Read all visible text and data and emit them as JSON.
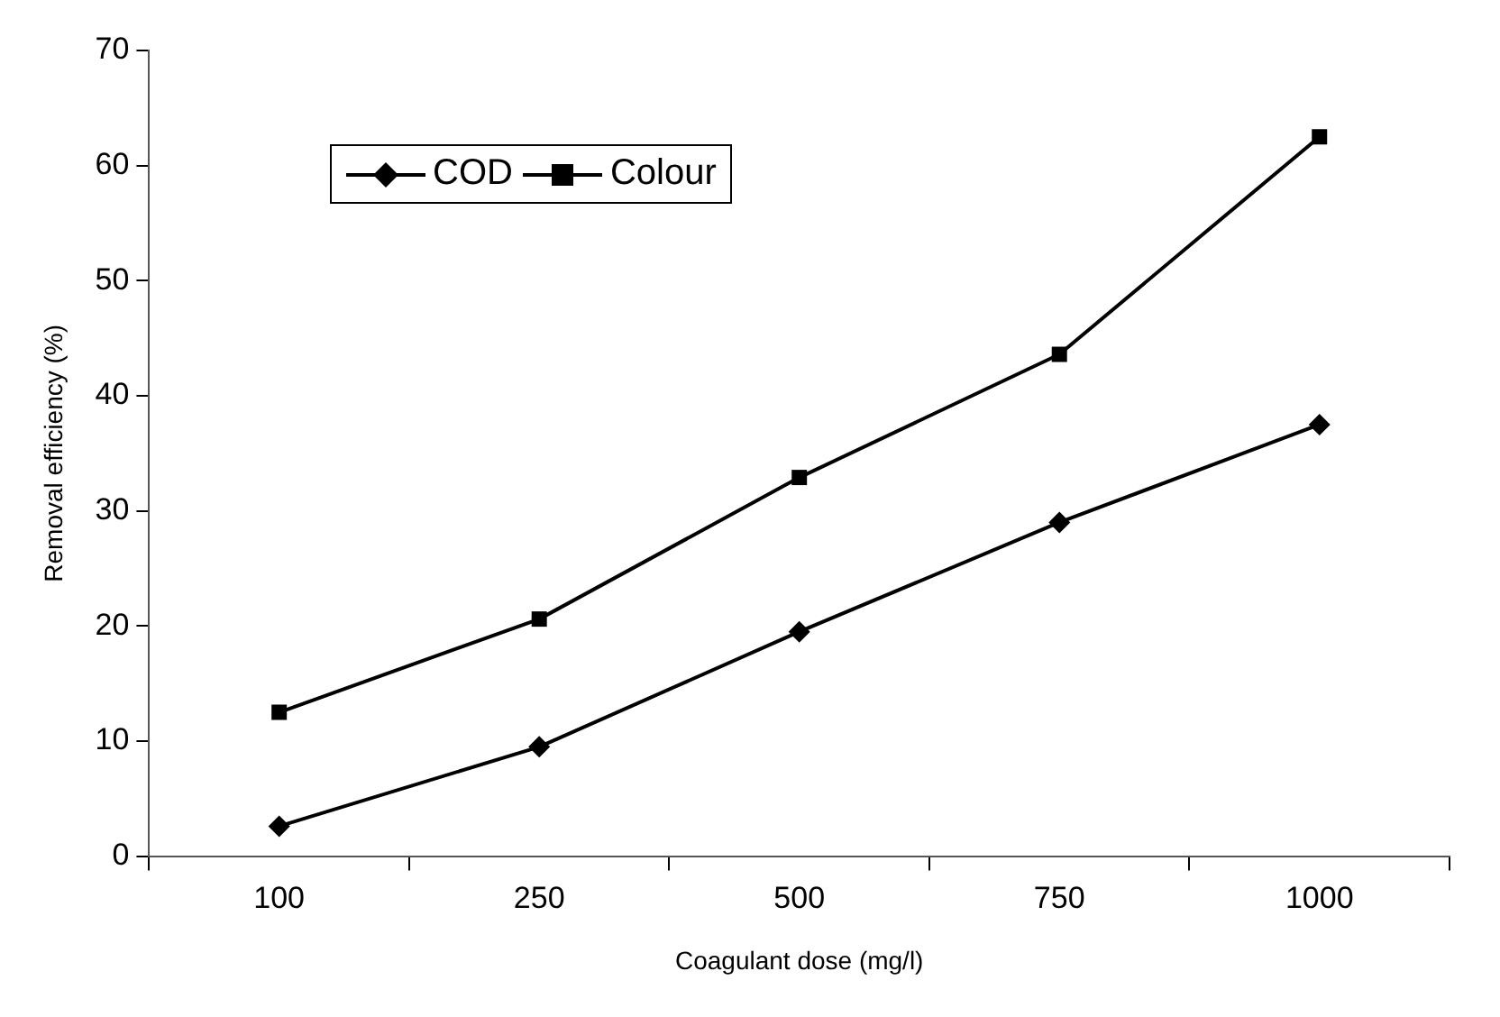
{
  "chart_data": {
    "type": "line",
    "xlabel": "Coagulant dose (mg/l)",
    "ylabel": "Removal efficiency (%)",
    "categories": [
      "100",
      "250",
      "500",
      "750",
      "1000"
    ],
    "series": [
      {
        "name": "COD",
        "color": "#000000",
        "marker": "diamond",
        "values": [
          2.6,
          9.5,
          19.5,
          29.0,
          37.5
        ]
      },
      {
        "name": "Colour",
        "color": "#000000",
        "marker": "square",
        "values": [
          12.5,
          20.6,
          32.9,
          43.6,
          62.5
        ]
      }
    ],
    "ylim": [
      0,
      70
    ],
    "yticks": [
      0,
      10,
      20,
      30,
      40,
      50,
      60,
      70
    ],
    "grid": false,
    "legend": "top left",
    "line_style": "solid"
  }
}
